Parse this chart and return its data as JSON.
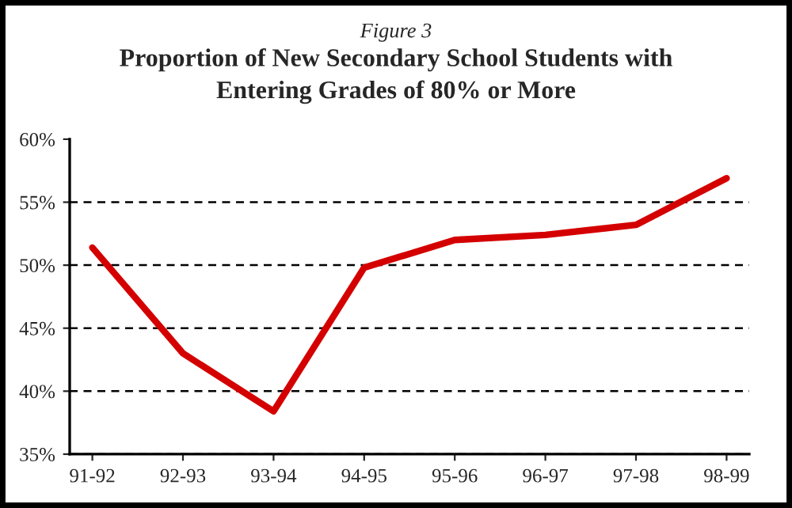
{
  "chart_data": {
    "type": "line",
    "title": "Proportion of New Secondary School Students with\nEntering Grades of 80% or More",
    "subtitle": "Figure 3",
    "categories": [
      "91-92",
      "92-93",
      "93-94",
      "94-95",
      "95-96",
      "96-97",
      "97-98",
      "98-99"
    ],
    "series": [
      {
        "color": "#d40000",
        "values": [
          51.4,
          43.0,
          38.4,
          49.8,
          52.0,
          52.4,
          53.2,
          56.9
        ]
      }
    ],
    "ylim": [
      35,
      60
    ],
    "yticks": [
      {
        "value": 35,
        "label": "35%"
      },
      {
        "value": 40,
        "label": "40%"
      },
      {
        "value": 45,
        "label": "45%"
      },
      {
        "value": 50,
        "label": "50%"
      },
      {
        "value": 55,
        "label": "55%"
      },
      {
        "value": 60,
        "label": "60%"
      }
    ],
    "grid": "y",
    "marker": "none",
    "line_style": "solid"
  }
}
